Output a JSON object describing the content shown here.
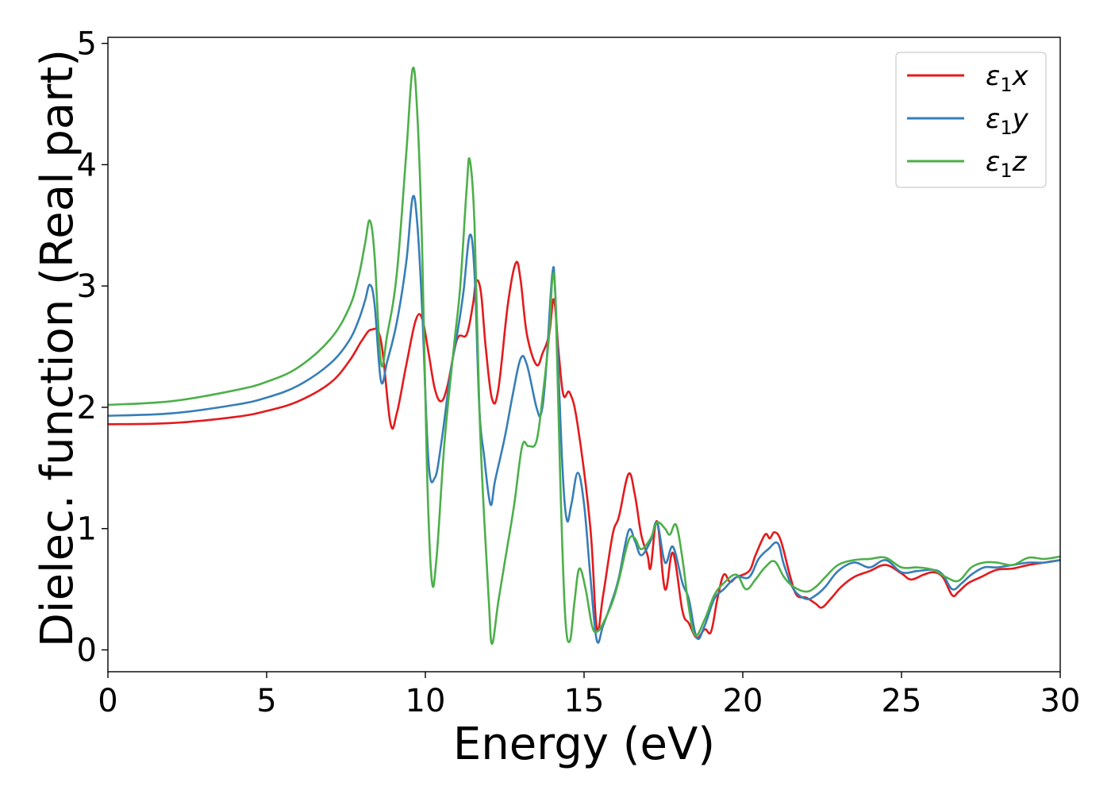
{
  "chart_data": {
    "type": "line",
    "title": "",
    "xlabel": "Energy (eV)",
    "ylabel": "Dielec. function (Real part)",
    "xlim": [
      0,
      30
    ],
    "ylim": [
      -0.18,
      5.05
    ],
    "xticks": [
      "0",
      "5",
      "10",
      "15",
      "20",
      "25",
      "30"
    ],
    "yticks": [
      "0",
      "1",
      "2",
      "3",
      "4",
      "5"
    ],
    "grid": false,
    "legend_position": "top-right",
    "series": [
      {
        "name": "ε₁x",
        "legend_base": "ε",
        "legend_sub": "1",
        "legend_var": "x",
        "color": "#e41a1c",
        "points": [
          [
            0,
            1.86
          ],
          [
            2,
            1.87
          ],
          [
            4,
            1.92
          ],
          [
            5,
            1.97
          ],
          [
            6,
            2.05
          ],
          [
            7,
            2.2
          ],
          [
            7.6,
            2.38
          ],
          [
            8,
            2.55
          ],
          [
            8.3,
            2.64
          ],
          [
            8.6,
            2.55
          ],
          [
            8.9,
            1.87
          ],
          [
            9.1,
            1.95
          ],
          [
            9.4,
            2.35
          ],
          [
            9.7,
            2.72
          ],
          [
            9.9,
            2.73
          ],
          [
            10.1,
            2.45
          ],
          [
            10.3,
            2.15
          ],
          [
            10.5,
            2.05
          ],
          [
            10.7,
            2.18
          ],
          [
            11,
            2.56
          ],
          [
            11.3,
            2.6
          ],
          [
            11.5,
            2.85
          ],
          [
            11.6,
            3.04
          ],
          [
            11.75,
            2.95
          ],
          [
            11.9,
            2.5
          ],
          [
            12.1,
            2.07
          ],
          [
            12.3,
            2.15
          ],
          [
            12.6,
            2.85
          ],
          [
            12.85,
            3.19
          ],
          [
            13,
            3.05
          ],
          [
            13.2,
            2.6
          ],
          [
            13.5,
            2.35
          ],
          [
            13.7,
            2.45
          ],
          [
            13.9,
            2.6
          ],
          [
            14.05,
            2.89
          ],
          [
            14.2,
            2.45
          ],
          [
            14.35,
            2.1
          ],
          [
            14.55,
            2.12
          ],
          [
            14.8,
            1.85
          ],
          [
            15.2,
            1.0
          ],
          [
            15.4,
            0.18
          ],
          [
            15.6,
            0.45
          ],
          [
            15.9,
            0.95
          ],
          [
            16.1,
            1.1
          ],
          [
            16.4,
            1.45
          ],
          [
            16.6,
            1.28
          ],
          [
            16.8,
            0.95
          ],
          [
            17,
            0.78
          ],
          [
            17.1,
            0.68
          ],
          [
            17.3,
            1.06
          ],
          [
            17.55,
            0.5
          ],
          [
            17.8,
            0.8
          ],
          [
            18.1,
            0.32
          ],
          [
            18.3,
            0.22
          ],
          [
            18.55,
            0.1
          ],
          [
            18.8,
            0.17
          ],
          [
            19,
            0.15
          ],
          [
            19.2,
            0.42
          ],
          [
            19.4,
            0.62
          ],
          [
            19.6,
            0.56
          ],
          [
            19.8,
            0.6
          ],
          [
            20.2,
            0.65
          ],
          [
            20.4,
            0.78
          ],
          [
            20.7,
            0.95
          ],
          [
            20.85,
            0.92
          ],
          [
            21,
            0.97
          ],
          [
            21.2,
            0.9
          ],
          [
            21.5,
            0.6
          ],
          [
            21.7,
            0.45
          ],
          [
            22,
            0.43
          ],
          [
            22.3,
            0.38
          ],
          [
            22.5,
            0.35
          ],
          [
            22.8,
            0.43
          ],
          [
            23.1,
            0.52
          ],
          [
            23.5,
            0.6
          ],
          [
            24,
            0.65
          ],
          [
            24.5,
            0.7
          ],
          [
            25,
            0.63
          ],
          [
            25.3,
            0.58
          ],
          [
            25.7,
            0.62
          ],
          [
            26,
            0.64
          ],
          [
            26.3,
            0.6
          ],
          [
            26.6,
            0.45
          ],
          [
            26.8,
            0.48
          ],
          [
            27.1,
            0.55
          ],
          [
            27.5,
            0.6
          ],
          [
            28,
            0.66
          ],
          [
            28.5,
            0.67
          ],
          [
            29,
            0.7
          ],
          [
            29.5,
            0.72
          ],
          [
            30,
            0.74
          ]
        ]
      },
      {
        "name": "ε₁y",
        "legend_base": "ε",
        "legend_sub": "1",
        "legend_var": "y",
        "color": "#377eb8",
        "points": [
          [
            0,
            1.93
          ],
          [
            2,
            1.95
          ],
          [
            4,
            2.02
          ],
          [
            5,
            2.08
          ],
          [
            6,
            2.18
          ],
          [
            7,
            2.36
          ],
          [
            7.6,
            2.55
          ],
          [
            7.9,
            2.72
          ],
          [
            8.1,
            2.88
          ],
          [
            8.25,
            3.01
          ],
          [
            8.4,
            2.85
          ],
          [
            8.6,
            2.22
          ],
          [
            8.8,
            2.38
          ],
          [
            9.1,
            2.7
          ],
          [
            9.4,
            3.2
          ],
          [
            9.6,
            3.73
          ],
          [
            9.75,
            3.5
          ],
          [
            9.9,
            2.8
          ],
          [
            10.1,
            1.55
          ],
          [
            10.3,
            1.42
          ],
          [
            10.5,
            1.7
          ],
          [
            10.8,
            2.3
          ],
          [
            11,
            2.6
          ],
          [
            11.2,
            2.95
          ],
          [
            11.4,
            3.42
          ],
          [
            11.55,
            3.1
          ],
          [
            11.7,
            2.0
          ],
          [
            11.85,
            1.6
          ],
          [
            12.05,
            1.2
          ],
          [
            12.2,
            1.4
          ],
          [
            12.5,
            1.75
          ],
          [
            12.75,
            2.1
          ],
          [
            13,
            2.4
          ],
          [
            13.2,
            2.35
          ],
          [
            13.5,
            2.0
          ],
          [
            13.65,
            1.95
          ],
          [
            13.8,
            2.3
          ],
          [
            14,
            3.1
          ],
          [
            14.1,
            2.9
          ],
          [
            14.3,
            1.6
          ],
          [
            14.45,
            1.08
          ],
          [
            14.6,
            1.2
          ],
          [
            14.8,
            1.46
          ],
          [
            15,
            1.2
          ],
          [
            15.2,
            0.6
          ],
          [
            15.4,
            0.08
          ],
          [
            15.6,
            0.2
          ],
          [
            15.9,
            0.42
          ],
          [
            16.1,
            0.6
          ],
          [
            16.4,
            0.98
          ],
          [
            16.6,
            0.9
          ],
          [
            16.8,
            0.78
          ],
          [
            17.1,
            0.9
          ],
          [
            17.3,
            1.05
          ],
          [
            17.55,
            0.72
          ],
          [
            17.8,
            0.85
          ],
          [
            18.1,
            0.55
          ],
          [
            18.3,
            0.42
          ],
          [
            18.55,
            0.1
          ],
          [
            18.8,
            0.2
          ],
          [
            19.1,
            0.42
          ],
          [
            19.4,
            0.5
          ],
          [
            19.8,
            0.6
          ],
          [
            20.2,
            0.6
          ],
          [
            20.5,
            0.75
          ],
          [
            20.8,
            0.83
          ],
          [
            21.1,
            0.88
          ],
          [
            21.3,
            0.7
          ],
          [
            21.6,
            0.5
          ],
          [
            22,
            0.42
          ],
          [
            22.3,
            0.45
          ],
          [
            22.6,
            0.52
          ],
          [
            23,
            0.65
          ],
          [
            23.5,
            0.72
          ],
          [
            24,
            0.68
          ],
          [
            24.5,
            0.74
          ],
          [
            25,
            0.64
          ],
          [
            25.5,
            0.65
          ],
          [
            26,
            0.66
          ],
          [
            26.3,
            0.62
          ],
          [
            26.6,
            0.5
          ],
          [
            26.9,
            0.55
          ],
          [
            27.2,
            0.62
          ],
          [
            27.6,
            0.68
          ],
          [
            28,
            0.68
          ],
          [
            28.5,
            0.7
          ],
          [
            29,
            0.72
          ],
          [
            29.5,
            0.72
          ],
          [
            30,
            0.74
          ]
        ]
      },
      {
        "name": "ε₁z",
        "legend_base": "ε",
        "legend_sub": "1",
        "legend_var": "z",
        "color": "#4daf4a",
        "points": [
          [
            0,
            2.02
          ],
          [
            2,
            2.05
          ],
          [
            4,
            2.14
          ],
          [
            5,
            2.21
          ],
          [
            6,
            2.33
          ],
          [
            7,
            2.56
          ],
          [
            7.6,
            2.82
          ],
          [
            7.9,
            3.08
          ],
          [
            8.1,
            3.35
          ],
          [
            8.25,
            3.54
          ],
          [
            8.4,
            3.25
          ],
          [
            8.6,
            2.37
          ],
          [
            8.8,
            2.6
          ],
          [
            9.1,
            3.1
          ],
          [
            9.4,
            4.1
          ],
          [
            9.6,
            4.79
          ],
          [
            9.75,
            4.4
          ],
          [
            9.9,
            3.3
          ],
          [
            10.05,
            1.5
          ],
          [
            10.2,
            0.58
          ],
          [
            10.35,
            0.75
          ],
          [
            10.6,
            1.7
          ],
          [
            10.9,
            2.5
          ],
          [
            11.1,
            3.0
          ],
          [
            11.3,
            3.8
          ],
          [
            11.4,
            4.04
          ],
          [
            11.55,
            3.5
          ],
          [
            11.7,
            2.0
          ],
          [
            11.85,
            1.1
          ],
          [
            12,
            0.4
          ],
          [
            12.1,
            0.05
          ],
          [
            12.3,
            0.4
          ],
          [
            12.55,
            0.8
          ],
          [
            12.8,
            1.2
          ],
          [
            13.05,
            1.68
          ],
          [
            13.25,
            1.68
          ],
          [
            13.5,
            1.72
          ],
          [
            13.7,
            2.1
          ],
          [
            13.9,
            2.6
          ],
          [
            14,
            3.05
          ],
          [
            14.1,
            2.9
          ],
          [
            14.25,
            1.4
          ],
          [
            14.4,
            0.3
          ],
          [
            14.55,
            0.07
          ],
          [
            14.7,
            0.4
          ],
          [
            14.85,
            0.67
          ],
          [
            15.05,
            0.5
          ],
          [
            15.25,
            0.2
          ],
          [
            15.4,
            0.15
          ],
          [
            15.6,
            0.22
          ],
          [
            15.9,
            0.4
          ],
          [
            16.1,
            0.58
          ],
          [
            16.4,
            0.9
          ],
          [
            16.6,
            0.92
          ],
          [
            16.8,
            0.83
          ],
          [
            17.1,
            0.92
          ],
          [
            17.3,
            1.05
          ],
          [
            17.55,
            1.0
          ],
          [
            17.7,
            0.95
          ],
          [
            17.9,
            1.03
          ],
          [
            18.1,
            0.75
          ],
          [
            18.3,
            0.35
          ],
          [
            18.5,
            0.12
          ],
          [
            18.8,
            0.25
          ],
          [
            19.1,
            0.45
          ],
          [
            19.4,
            0.55
          ],
          [
            19.8,
            0.62
          ],
          [
            20.1,
            0.5
          ],
          [
            20.4,
            0.58
          ],
          [
            20.7,
            0.68
          ],
          [
            21,
            0.73
          ],
          [
            21.3,
            0.6
          ],
          [
            21.6,
            0.52
          ],
          [
            22,
            0.48
          ],
          [
            22.3,
            0.52
          ],
          [
            22.6,
            0.6
          ],
          [
            23,
            0.7
          ],
          [
            23.5,
            0.74
          ],
          [
            24,
            0.75
          ],
          [
            24.5,
            0.76
          ],
          [
            25,
            0.68
          ],
          [
            25.5,
            0.68
          ],
          [
            26,
            0.66
          ],
          [
            26.4,
            0.6
          ],
          [
            26.8,
            0.57
          ],
          [
            27.2,
            0.68
          ],
          [
            27.6,
            0.72
          ],
          [
            28,
            0.72
          ],
          [
            28.5,
            0.7
          ],
          [
            29,
            0.76
          ],
          [
            29.5,
            0.75
          ],
          [
            30,
            0.77
          ]
        ]
      }
    ]
  }
}
